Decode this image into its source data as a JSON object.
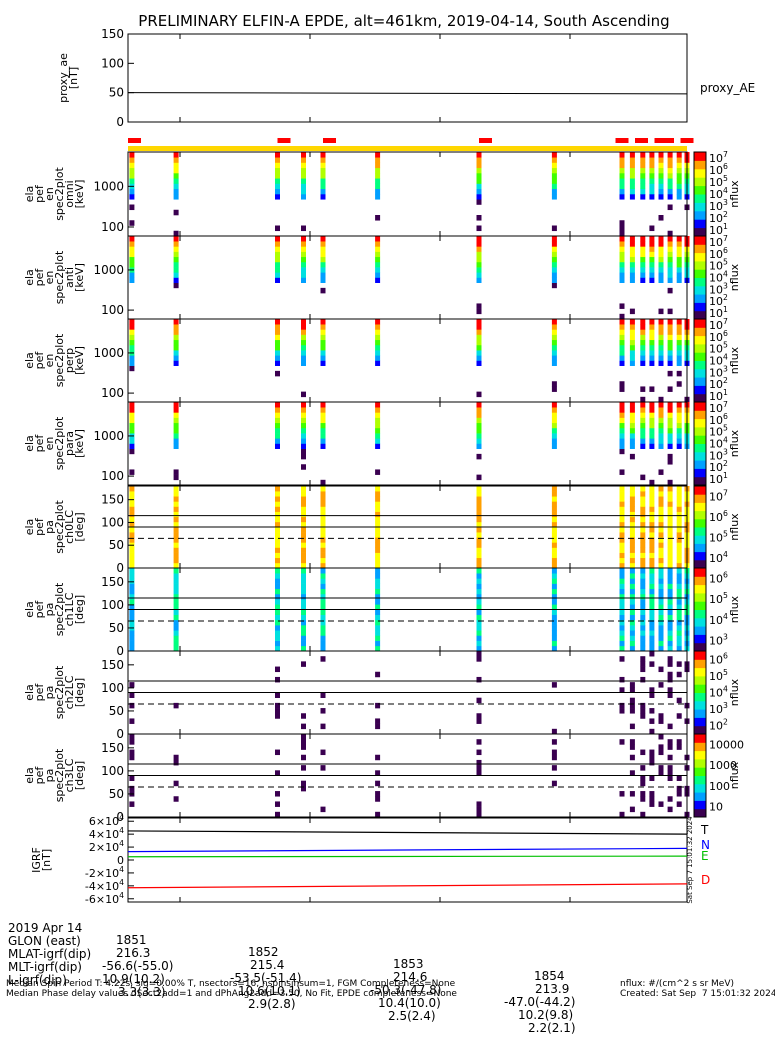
{
  "title": "PRELIMINARY ELFIN-A EPDE, alt=461km, 2019-04-14, South Ascending",
  "annotation_rows": [
    {
      "label": "2019 Apr 14",
      "values": [
        "1851",
        "1852",
        "1853",
        "1854"
      ]
    },
    {
      "label": "GLON (east)",
      "values": [
        "216.3",
        "215.4",
        "214.6",
        "213.9"
      ]
    },
    {
      "label": "MLAT-igrf(dip)",
      "values": [
        "-56.6(-55.0)",
        "-53.5(-51.4)",
        "-50.3(-47.8)",
        "-47.0(-44.2)"
      ]
    },
    {
      "label": "MLT-igrf(dip)",
      "values": [
        "10.9(10.2)",
        "10.6(10.1)",
        "10.4(10.0)",
        "10.2(9.8)"
      ]
    },
    {
      "label": "L-igrf(dip)",
      "values": [
        "3.3(3.3)",
        "2.9(2.8)",
        "2.5(2.4)",
        "2.2(2.1)"
      ]
    }
  ],
  "footer": {
    "line1": "Median Spin Period T: 4.22s, sig=0.00% T, nsectors=16, nspinsinsum=1, FGM Completeness=None",
    "line2": "Median Phase delay values dSect2add=1 and dPhAng2add=3.50, No Fit, EPDE completeness=None",
    "units": "nflux: #/(cm^2 s sr MeV)",
    "created": "Created: Sat Sep  7 15:01:32 2024",
    "side_stamp": "Sat Sep  7 15:01:32 2024"
  },
  "colors": {
    "ae_line": "#000000",
    "status_red": "#ff0000",
    "status_yellow": "#ffd700",
    "bfield_T": "#000000",
    "bfield_N": "#0000ff",
    "bfield_E": "#00c000",
    "bfield_D": "#ff0000",
    "pitch_ref_line": "#000000",
    "spectra_colors": [
      "#3a0050",
      "#0000ff",
      "#00a0ff",
      "#00e0e0",
      "#00ff80",
      "#40ff00",
      "#b0ff00",
      "#ffff00",
      "#ffa000",
      "#ff0000"
    ]
  },
  "chart_data": [
    {
      "type": "line",
      "panel_id": "proxy_ae",
      "ylabel": [
        "proxy_ae",
        "[nT]"
      ],
      "ylim": [
        0,
        150
      ],
      "yticks": [
        "0",
        "50",
        "100",
        "150"
      ],
      "series": [
        {
          "name": "proxy_AE",
          "x": [
            "1850.6",
            "1854.9"
          ],
          "values": [
            50,
            48
          ]
        }
      ]
    },
    {
      "type": "heatmap",
      "panel_id": "status_bar",
      "description_tokens": [
        "red",
        "yellow"
      ],
      "red_segments_min": [
        [
          1850.6,
          1850.7
        ],
        [
          1851.75,
          1851.85
        ],
        [
          1852.1,
          1852.2
        ],
        [
          1853.3,
          1853.4
        ],
        [
          1854.35,
          1854.45
        ],
        [
          1854.5,
          1854.6
        ],
        [
          1854.65,
          1854.8
        ],
        [
          1854.85,
          1854.95
        ]
      ]
    },
    {
      "type": "heatmap",
      "panel_id": "en_spec_omni",
      "ylabel": [
        "ela",
        "pef",
        "en",
        "spec2plot",
        "omni",
        "[keV]"
      ],
      "yscale": "log",
      "ylim": [
        60,
        7000
      ],
      "yticks": [
        "100",
        "1000"
      ],
      "colorbar": {
        "label": "nflux",
        "scale": "log",
        "ticks": [
          "10^1",
          "10^2",
          "10^3",
          "10^4",
          "10^5",
          "10^6",
          "10^7"
        ]
      }
    },
    {
      "type": "heatmap",
      "panel_id": "en_spec_anti",
      "ylabel": [
        "ela",
        "pef",
        "en",
        "spec2plot",
        "anti",
        "[keV]"
      ],
      "yscale": "log",
      "ylim": [
        60,
        7000
      ],
      "yticks": [
        "100",
        "1000"
      ],
      "colorbar": {
        "label": "nflux",
        "scale": "log",
        "ticks": [
          "10^1",
          "10^2",
          "10^3",
          "10^4",
          "10^5",
          "10^6",
          "10^7"
        ]
      }
    },
    {
      "type": "heatmap",
      "panel_id": "en_spec_perp",
      "ylabel": [
        "ela",
        "pef",
        "en",
        "spec2plot",
        "perp",
        "[keV]"
      ],
      "yscale": "log",
      "ylim": [
        60,
        7000
      ],
      "yticks": [
        "100",
        "1000"
      ],
      "colorbar": {
        "label": "nflux",
        "scale": "log",
        "ticks": [
          "10^1",
          "10^2",
          "10^3",
          "10^4",
          "10^5",
          "10^6",
          "10^7"
        ]
      }
    },
    {
      "type": "heatmap",
      "panel_id": "en_spec_para",
      "ylabel": [
        "ela",
        "pef",
        "en",
        "spec2plot",
        "para",
        "[keV]"
      ],
      "yscale": "log",
      "ylim": [
        60,
        7000
      ],
      "yticks": [
        "100",
        "1000"
      ],
      "colorbar": {
        "label": "nflux",
        "scale": "log",
        "ticks": [
          "10^1",
          "10^2",
          "10^3",
          "10^4",
          "10^5",
          "10^6",
          "10^7"
        ]
      }
    },
    {
      "type": "heatmap",
      "panel_id": "pa_ch0",
      "ylabel": [
        "ela",
        "pef",
        "pa",
        "spec2plot",
        "ch0LC",
        "[deg]"
      ],
      "ylim": [
        0,
        180
      ],
      "yticks": [
        "0",
        "50",
        "100",
        "150"
      ],
      "ref_lines": {
        "solid": [
          90,
          115
        ],
        "dashed": [
          65
        ]
      },
      "colorbar": {
        "label": "nflux",
        "scale": "log",
        "ticks": [
          "10^4",
          "10^5",
          "10^6",
          "10^7"
        ]
      }
    },
    {
      "type": "heatmap",
      "panel_id": "pa_ch1",
      "ylabel": [
        "ela",
        "pef",
        "pa",
        "spec2plot",
        "ch1LC",
        "[deg]"
      ],
      "ylim": [
        0,
        180
      ],
      "yticks": [
        "0",
        "50",
        "100",
        "150"
      ],
      "ref_lines": {
        "solid": [
          90,
          115
        ],
        "dashed": [
          65
        ]
      },
      "colorbar": {
        "label": "nflux",
        "scale": "log",
        "ticks": [
          "10^3",
          "10^4",
          "10^5",
          "10^6"
        ]
      }
    },
    {
      "type": "heatmap",
      "panel_id": "pa_ch2",
      "ylabel": [
        "ela",
        "pef",
        "pa",
        "spec2plot",
        "ch2LC",
        "[deg]"
      ],
      "ylim": [
        0,
        180
      ],
      "yticks": [
        "0",
        "50",
        "100",
        "150"
      ],
      "ref_lines": {
        "solid": [
          90,
          115
        ],
        "dashed": [
          65
        ]
      },
      "colorbar": {
        "label": "nflux",
        "scale": "log",
        "ticks": [
          "10^2",
          "10^3",
          "10^4",
          "10^5",
          "10^6"
        ]
      }
    },
    {
      "type": "heatmap",
      "panel_id": "pa_ch3",
      "ylabel": [
        "ela",
        "pef",
        "pa",
        "spec2plot",
        "ch3LC",
        "[deg]"
      ],
      "ylim": [
        0,
        180
      ],
      "yticks": [
        "0",
        "50",
        "100",
        "150"
      ],
      "ref_lines": {
        "solid": [
          90,
          115
        ],
        "dashed": [
          65
        ]
      },
      "colorbar": {
        "label": "nflux",
        "scale": "log",
        "ticks": [
          "10",
          "100",
          "1000",
          "10000"
        ]
      }
    },
    {
      "type": "line",
      "panel_id": "igrf",
      "ylabel": [
        "IGRF",
        "[nT]"
      ],
      "ylim": [
        -65000,
        65000
      ],
      "yticks": [
        "-6×10^4",
        "-4×10^4",
        "-2×10^4",
        "0",
        "2×10^4",
        "4×10^4",
        "6×10^4"
      ],
      "series": [
        {
          "name": "T",
          "x": [
            "1850.6",
            "1854.9"
          ],
          "values": [
            45000,
            40000
          ]
        },
        {
          "name": "N",
          "x": [
            "1850.6",
            "1854.9"
          ],
          "values": [
            13000,
            18000
          ]
        },
        {
          "name": "E",
          "x": [
            "1850.6",
            "1854.9"
          ],
          "values": [
            5000,
            6000
          ]
        },
        {
          "name": "D",
          "x": [
            "1850.6",
            "1854.9"
          ],
          "values": [
            -43000,
            -37000
          ]
        }
      ]
    }
  ],
  "x_axis": {
    "ticks": [
      "1851",
      "1852",
      "1853",
      "1854"
    ],
    "tick_minutes": [
      1851,
      1852,
      1853,
      1854
    ],
    "xlim_minutes": [
      1850.6,
      1854.9
    ]
  },
  "spin_columns_min": [
    1850.63,
    1850.97,
    1851.75,
    1851.95,
    1852.1,
    1852.52,
    1853.3,
    1853.88,
    1854.4,
    1854.48,
    1854.56,
    1854.63,
    1854.7,
    1854.77,
    1854.84,
    1854.9
  ]
}
